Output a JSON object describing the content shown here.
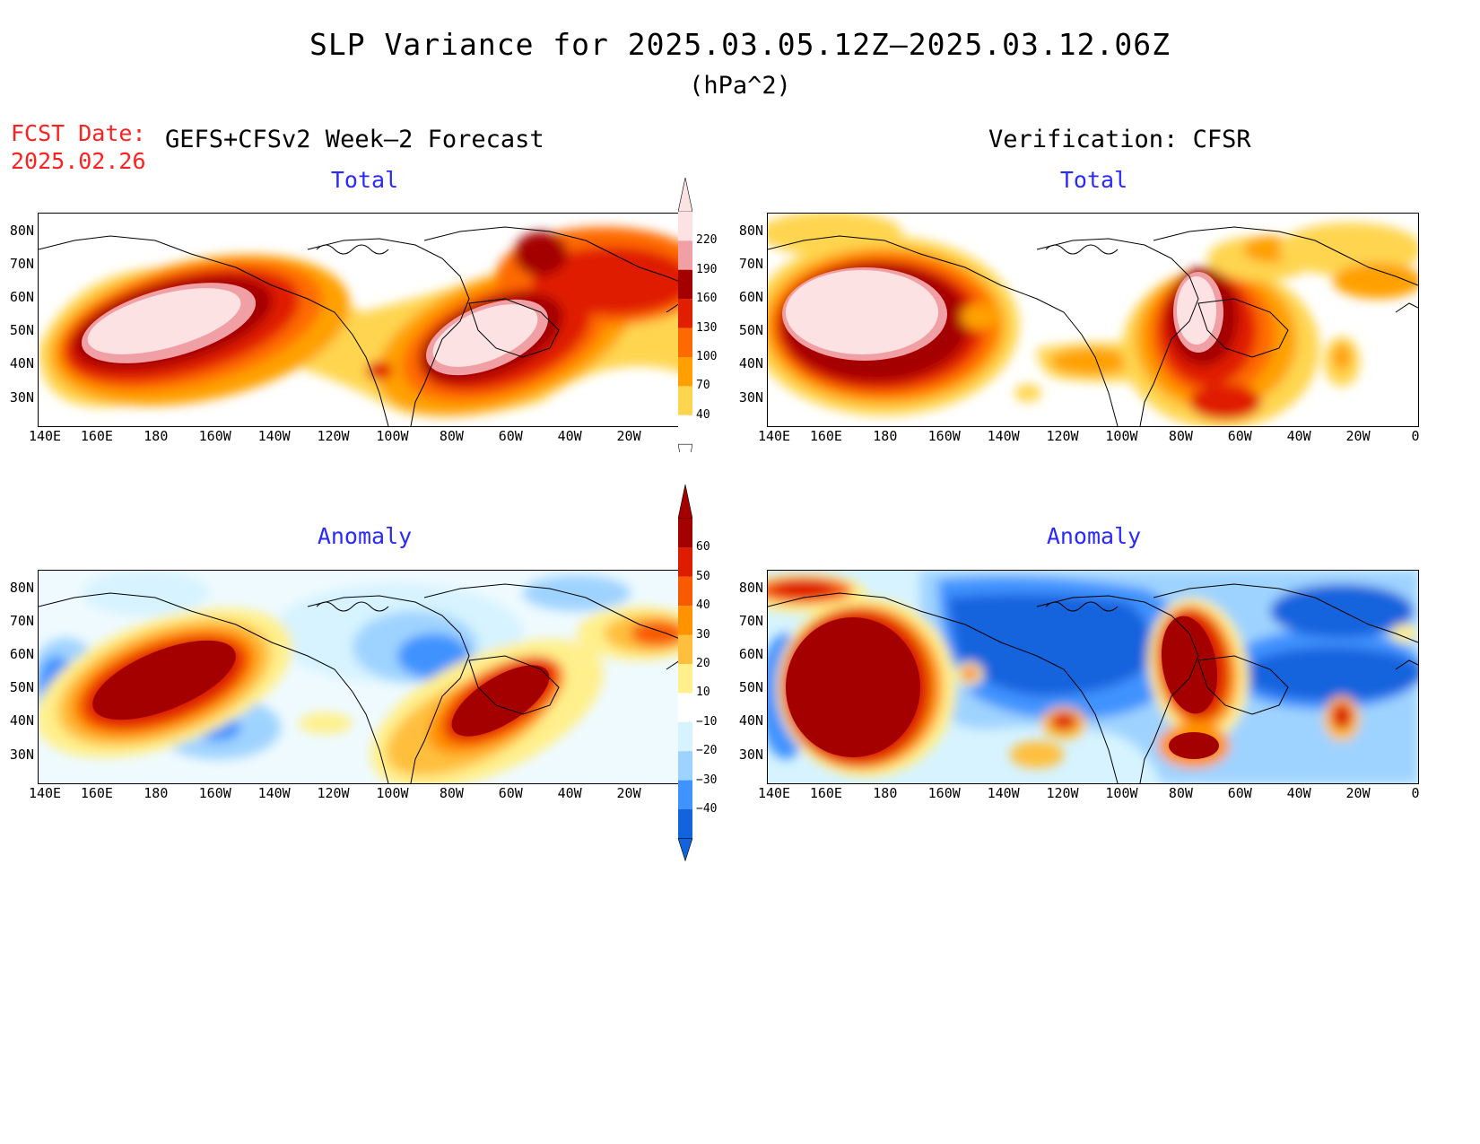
{
  "title": "SLP Variance for 2025.03.05.12Z–2025.03.12.06Z",
  "units": "(hPa^2)",
  "fcst_label": "FCST Date:",
  "fcst_date": "2025.02.26",
  "left_heading": "GEFS+CFSv2 Week–2 Forecast",
  "right_heading": "Verification: CFSR",
  "panels": {
    "fcst_total": {
      "title": "Total"
    },
    "verif_total": {
      "title": "Total"
    },
    "fcst_anom": {
      "title": "Anomaly"
    },
    "verif_anom": {
      "title": "Anomaly"
    }
  },
  "lat_labels": [
    "80N",
    "70N",
    "60N",
    "50N",
    "40N",
    "30N"
  ],
  "lon_labels": [
    "140E",
    "160E",
    "180",
    "160W",
    "140W",
    "120W",
    "100W",
    "80W",
    "60W",
    "40W",
    "20W",
    "0"
  ],
  "total_colorbar": {
    "labels": [
      "220",
      "190",
      "160",
      "130",
      "100",
      "70",
      "40"
    ],
    "colors": [
      "#fde2e3",
      "#f0a0a4",
      "#a50000",
      "#e01e00",
      "#ff6a00",
      "#ffa000",
      "#ffd54f",
      "#ffffff"
    ]
  },
  "anom_colorbar": {
    "labels": [
      "60",
      "50",
      "40",
      "30",
      "20",
      "10",
      "−10",
      "−20",
      "−30",
      "−40"
    ],
    "colors": [
      "#a50000",
      "#dd1c00",
      "#f85a00",
      "#ff9200",
      "#ffbf3c",
      "#fff08c",
      "#ffffff",
      "#d6f3ff",
      "#9fd3ff",
      "#3f93ff",
      "#1263de"
    ]
  },
  "chart_data": {
    "type": "heatmap",
    "region": {
      "lon_range": [
        "140E",
        "0"
      ],
      "lat_range": [
        "25N",
        "85N"
      ]
    },
    "panels": [
      {
        "name": "GEFS+CFSv2 Week-2 Forecast Total",
        "features": [
          {
            "center": [
              "175E",
              "47N"
            ],
            "max_value": ">220"
          },
          {
            "center": [
              "60W",
              "45N"
            ],
            "max_value": ">220"
          },
          {
            "center": [
              "40W",
              "70N"
            ],
            "max_value": "160-190"
          }
        ]
      },
      {
        "name": "Verification CFSR Total",
        "features": [
          {
            "center": [
              "175E",
              "50N"
            ],
            "max_value": ">220"
          },
          {
            "center": [
              "65W",
              "55N"
            ],
            "max_value": ">220"
          }
        ]
      },
      {
        "name": "GEFS+CFSv2 Week-2 Forecast Anomaly",
        "features": [
          {
            "center": [
              "175E",
              "50N"
            ],
            "max_value": ">60"
          },
          {
            "center": [
              "60W",
              "48N"
            ],
            "max_value": ">60"
          },
          {
            "center": [
              "165W",
              "37N"
            ],
            "max_value": "-30 to -40"
          }
        ]
      },
      {
        "name": "Verification CFSR Anomaly",
        "features": [
          {
            "center": [
              "175E",
              "47N"
            ],
            "max_value": ">60"
          },
          {
            "center": [
              "65W",
              "55N"
            ],
            "max_value": ">60"
          },
          {
            "center": [
              "120W",
              "55N"
            ],
            "max_value": "-30 to -40"
          },
          {
            "center": [
              "30W",
              "55N"
            ],
            "max_value": "-30 to -40"
          }
        ]
      }
    ]
  }
}
